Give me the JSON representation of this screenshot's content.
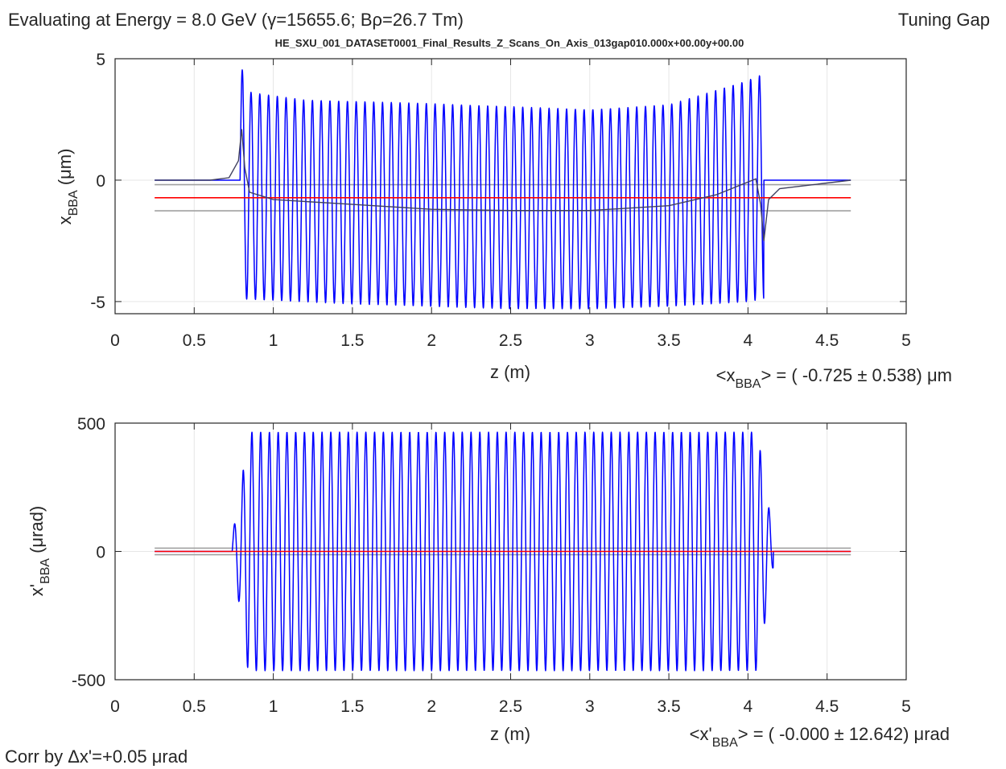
{
  "header": {
    "title": "Evaluating at Energy =  8.0 GeV (γ=15655.6; Bρ=26.7 Tm)",
    "mode": "Tuning Gap",
    "dataset": "HE_SXU_001_DATASET0001_Final_Results_Z_Scans_On_Axis_013gap010.000x+00.00y+00.00"
  },
  "footer": {
    "correction": "Corr by Δx'=+0.05 μrad"
  },
  "colors": {
    "trajectory": "#0000ff",
    "mean": "#ff0000",
    "band": "#a0a0a0",
    "slow": "#404060",
    "grid": "#e6e6e6",
    "axis": "#262626"
  },
  "chart_data": [
    {
      "type": "line",
      "xlabel": "z (m)",
      "ylabel": {
        "base": "x",
        "sub": "BBA",
        "unit": " (μm)"
      },
      "xlim": [
        0,
        5
      ],
      "ylim": [
        -5.5,
        5
      ],
      "xticks": [
        0,
        0.5,
        1,
        1.5,
        2,
        2.5,
        3,
        3.5,
        4,
        4.5,
        5
      ],
      "xtick_labels": [
        "0",
        "0.5",
        "1",
        "1.5",
        "2",
        "2.5",
        "3",
        "3.5",
        "4",
        "4.5",
        "5"
      ],
      "yticks": [
        -5,
        0,
        5
      ],
      "ytick_labels": [
        "-5",
        "0",
        "5"
      ],
      "grid": true,
      "stat": {
        "prefix": "<x",
        "sub": "BBA",
        "suffix": "> = ( -0.725 ± 0.538) μm"
      },
      "series": [
        {
          "style": "oscillation",
          "z_start": 0.25,
          "z_end": 4.65,
          "z_osc_start": 0.79,
          "z_osc_end": 4.1,
          "period": 0.0554,
          "pre_level": 0.0,
          "post_level": 0.0,
          "upper_envelope": [
            [
              0.8,
              4.6
            ],
            [
              0.86,
              3.6
            ],
            [
              1.2,
              3.3
            ],
            [
              2.0,
              3.15
            ],
            [
              3.0,
              2.9
            ],
            [
              3.5,
              3.1
            ],
            [
              4.0,
              4.1
            ],
            [
              4.06,
              4.3
            ]
          ],
          "lower_envelope": [
            [
              0.82,
              -4.9
            ],
            [
              1.5,
              -5.1
            ],
            [
              2.5,
              -5.3
            ],
            [
              3.0,
              -5.3
            ],
            [
              3.5,
              -5.2
            ],
            [
              4.0,
              -5.0
            ],
            [
              4.09,
              -4.9
            ]
          ]
        },
        {
          "style": "smooth",
          "points": [
            [
              0.25,
              0.0
            ],
            [
              0.6,
              0.0
            ],
            [
              0.72,
              0.1
            ],
            [
              0.78,
              0.8
            ],
            [
              0.8,
              2.1
            ],
            [
              0.82,
              0.5
            ],
            [
              0.85,
              -0.5
            ],
            [
              1.0,
              -0.8
            ],
            [
              1.5,
              -1.0
            ],
            [
              2.0,
              -1.2
            ],
            [
              2.5,
              -1.25
            ],
            [
              3.0,
              -1.25
            ],
            [
              3.5,
              -1.05
            ],
            [
              3.8,
              -0.6
            ],
            [
              4.05,
              0.05
            ],
            [
              4.08,
              -1.0
            ],
            [
              4.1,
              -2.5
            ],
            [
              4.13,
              -0.8
            ],
            [
              4.2,
              -0.35
            ],
            [
              4.65,
              0.0
            ]
          ]
        },
        {
          "style": "hline",
          "role": "mean",
          "value": -0.725,
          "z": [
            0.25,
            4.65
          ]
        },
        {
          "style": "hline",
          "role": "band",
          "value": -0.187,
          "z": [
            0.25,
            4.65
          ]
        },
        {
          "style": "hline",
          "role": "band",
          "value": -1.263,
          "z": [
            0.25,
            4.65
          ]
        }
      ]
    },
    {
      "type": "line",
      "xlabel": "z (m)",
      "ylabel": {
        "base": "x'",
        "sub": "BBA",
        "unit": " (μrad)"
      },
      "xlim": [
        0,
        5
      ],
      "ylim": [
        -500,
        500
      ],
      "xticks": [
        0,
        0.5,
        1,
        1.5,
        2,
        2.5,
        3,
        3.5,
        4,
        4.5,
        5
      ],
      "xtick_labels": [
        "0",
        "0.5",
        "1",
        "1.5",
        "2",
        "2.5",
        "3",
        "3.5",
        "4",
        "4.5",
        "5"
      ],
      "yticks": [
        -500,
        0,
        500
      ],
      "ytick_labels": [
        "-500",
        "0",
        "500"
      ],
      "grid": true,
      "stat": {
        "prefix": "<x'",
        "sub": "BBA",
        "suffix": "> = ( -0.000 ± 12.642) μrad"
      },
      "series": [
        {
          "style": "oscillation",
          "z_start": 0.25,
          "z_end": 4.65,
          "z_osc_start": 0.74,
          "z_osc_end": 4.16,
          "period": 0.0554,
          "pre_level": 0,
          "post_level": 0,
          "upper_envelope": [
            [
              0.74,
              60
            ],
            [
              0.79,
              220
            ],
            [
              0.84,
              465
            ],
            [
              4.06,
              465
            ],
            [
              4.12,
              220
            ],
            [
              4.16,
              60
            ]
          ],
          "lower_envelope": [
            [
              0.74,
              -60
            ],
            [
              0.79,
              -220
            ],
            [
              0.84,
              -465
            ],
            [
              4.06,
              -465
            ],
            [
              4.12,
              -220
            ],
            [
              4.16,
              -60
            ]
          ]
        },
        {
          "style": "hline",
          "role": "mean",
          "value": 0,
          "z": [
            0.25,
            4.65
          ]
        },
        {
          "style": "hline",
          "role": "band",
          "value": 12.642,
          "z": [
            0.25,
            4.65
          ]
        },
        {
          "style": "hline",
          "role": "band",
          "value": -12.642,
          "z": [
            0.25,
            4.65
          ]
        }
      ]
    }
  ]
}
